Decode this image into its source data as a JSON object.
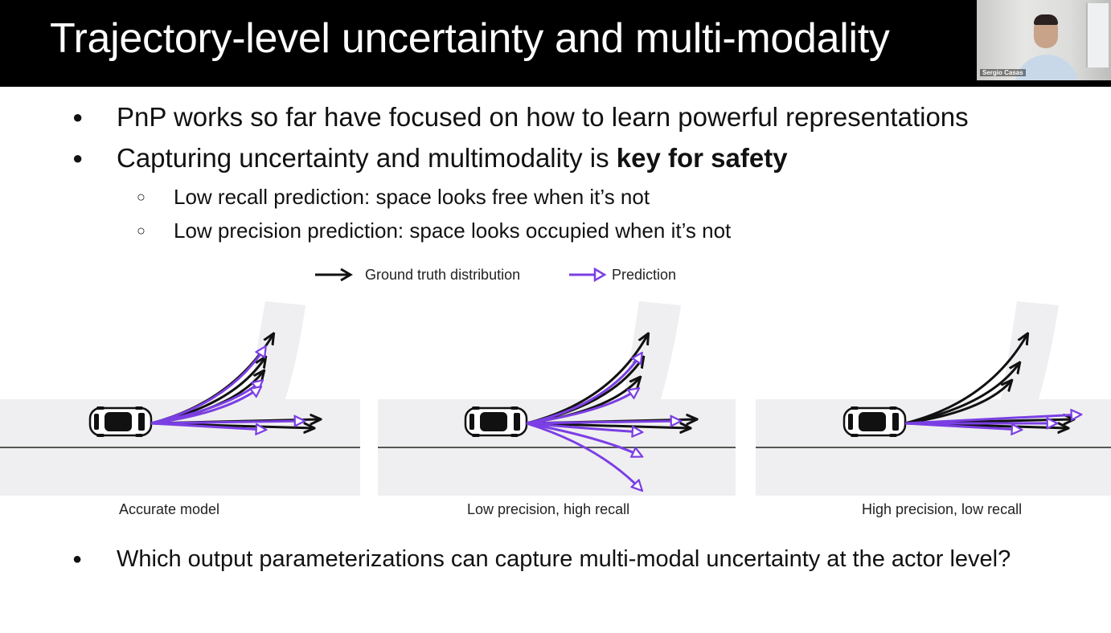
{
  "slide": {
    "title": "Trajectory-level uncertainty and multi-modality",
    "bullets": [
      {
        "text": "PnP works so far have focused on how to learn powerful representations"
      },
      {
        "text_prefix": "Capturing uncertainty and multimodality is ",
        "text_bold": "key for safety"
      }
    ],
    "sub_bullets": [
      {
        "text": "Low recall prediction: space looks free when it’s not"
      },
      {
        "text": "Low precision prediction: space looks occupied when it’s not"
      }
    ],
    "bullet_glyph": "●",
    "sub_bullet_glyph": "○",
    "final_bullet": "Which output parameterizations can capture multi-modal uncertainty at the actor level?"
  },
  "legend": {
    "ground_truth_label": "Ground truth distribution",
    "prediction_label": "Prediction"
  },
  "panels": [
    {
      "caption": "Accurate model"
    },
    {
      "caption": "Low precision, high recall"
    },
    {
      "caption": "High precision, low recall"
    }
  ],
  "video": {
    "participant_name": "Sergio Casas"
  },
  "colors": {
    "title_bar": "#000000",
    "ground_truth": "#111111",
    "prediction": "#7b3fe4",
    "road": "#efeff1"
  },
  "icons": {
    "car": "car-top-view-icon",
    "ground_truth_arrow": "black-arrow-icon",
    "prediction_arrow": "purple-hollow-arrow-icon"
  }
}
